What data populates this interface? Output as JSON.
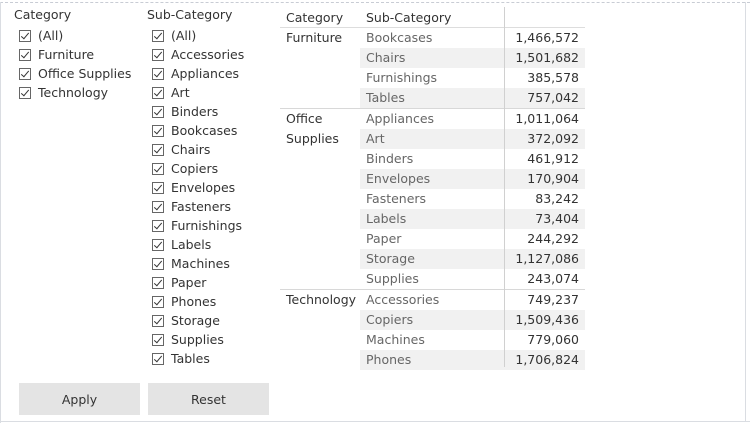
{
  "category_filter": {
    "title": "Category",
    "items": [
      "(All)",
      "Furniture",
      "Office Supplies",
      "Technology"
    ]
  },
  "subcategory_filter": {
    "title": "Sub-Category",
    "items": [
      "(All)",
      "Accessories",
      "Appliances",
      "Art",
      "Binders",
      "Bookcases",
      "Chairs",
      "Copiers",
      "Envelopes",
      "Fasteners",
      "Furnishings",
      "Labels",
      "Machines",
      "Paper",
      "Phones",
      "Storage",
      "Supplies",
      "Tables"
    ]
  },
  "buttons": {
    "apply": "Apply",
    "reset": "Reset"
  },
  "table": {
    "headers": {
      "category": "Category",
      "subcategory": "Sub-Category"
    },
    "groups": [
      {
        "category": "Furniture",
        "rows": [
          {
            "sub": "Bookcases",
            "value": "1,466,572"
          },
          {
            "sub": "Chairs",
            "value": "1,501,682"
          },
          {
            "sub": "Furnishings",
            "value": "385,578"
          },
          {
            "sub": "Tables",
            "value": "757,042"
          }
        ]
      },
      {
        "category": "Office Supplies",
        "rows": [
          {
            "sub": "Appliances",
            "value": "1,011,064"
          },
          {
            "sub": "Art",
            "value": "372,092"
          },
          {
            "sub": "Binders",
            "value": "461,912"
          },
          {
            "sub": "Envelopes",
            "value": "170,904"
          },
          {
            "sub": "Fasteners",
            "value": "83,242"
          },
          {
            "sub": "Labels",
            "value": "73,404"
          },
          {
            "sub": "Paper",
            "value": "244,292"
          },
          {
            "sub": "Storage",
            "value": "1,127,086"
          },
          {
            "sub": "Supplies",
            "value": "243,074"
          }
        ]
      },
      {
        "category": "Technology",
        "rows": [
          {
            "sub": "Accessories",
            "value": "749,237"
          },
          {
            "sub": "Copiers",
            "value": "1,509,436"
          },
          {
            "sub": "Machines",
            "value": "779,060"
          },
          {
            "sub": "Phones",
            "value": "1,706,824"
          }
        ]
      }
    ]
  }
}
